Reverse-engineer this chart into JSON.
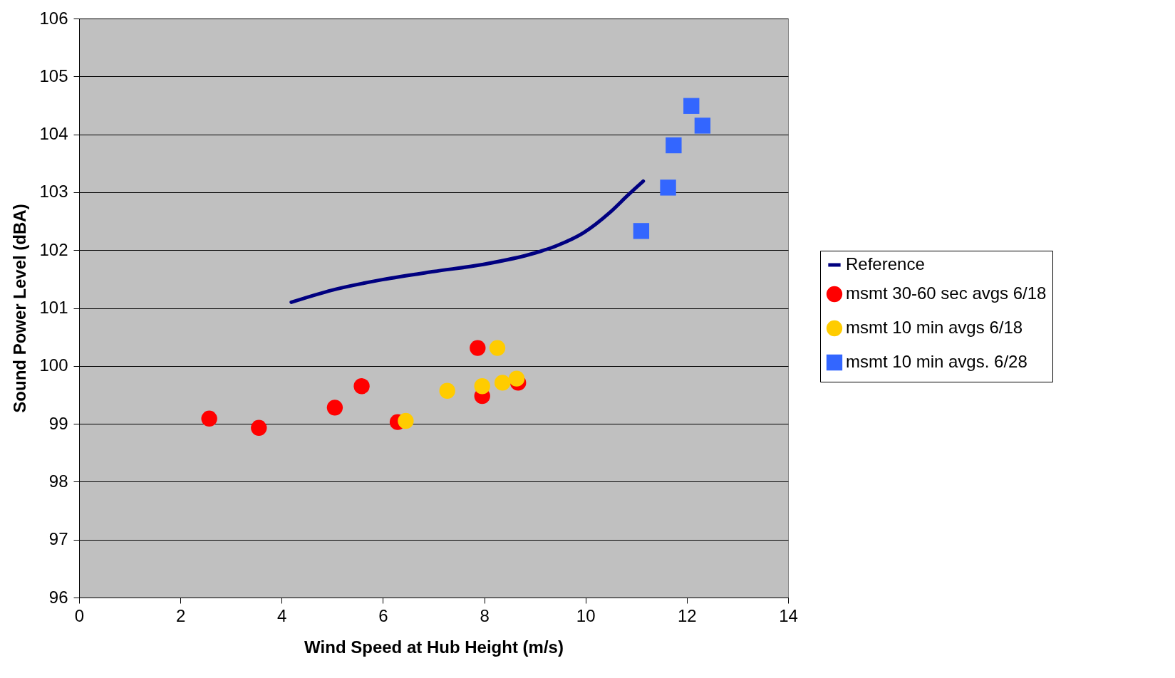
{
  "chart_data": {
    "type": "scatter",
    "xlabel": "Wind Speed at Hub Height (m/s)",
    "ylabel": "Sound Power Level (dBA)",
    "xlim": [
      0,
      14
    ],
    "xticks": [
      0,
      2,
      4,
      6,
      8,
      10,
      12,
      14
    ],
    "ylim": [
      96,
      106
    ],
    "yticks": [
      96,
      97,
      98,
      99,
      100,
      101,
      102,
      103,
      104,
      105,
      106
    ],
    "grid": "y",
    "legend": "right",
    "series": [
      {
        "name": "Reference",
        "type": "line",
        "color": "#000080",
        "line_style": "solid",
        "x": [
          4.19,
          5.0,
          5.99,
          7.0,
          7.96,
          9.0,
          9.44,
          9.96,
          10.48,
          10.85,
          11.14
        ],
        "values": [
          101.1,
          101.31,
          101.49,
          101.63,
          101.75,
          101.95,
          102.08,
          102.3,
          102.65,
          102.96,
          103.19
        ]
      },
      {
        "name": "msmt 30-60 sec avgs 6/18",
        "marker": "circle",
        "color": "#ff0000",
        "x": [
          2.57,
          3.55,
          5.05,
          5.58,
          6.29,
          7.87,
          7.96,
          8.67
        ],
        "values": [
          99.09,
          98.93,
          99.28,
          99.65,
          99.03,
          100.31,
          99.48,
          99.71
        ]
      },
      {
        "name": "msmt 10 min avgs 6/18",
        "marker": "circle",
        "color": "#ffcc00",
        "x": [
          6.45,
          7.27,
          8.26,
          7.96,
          8.36,
          8.64
        ],
        "values": [
          99.05,
          99.57,
          100.31,
          99.65,
          99.71,
          99.78
        ]
      },
      {
        "name": "msmt 10 min avgs. 6/28",
        "marker": "square",
        "color": "#3366ff",
        "x": [
          11.1,
          11.63,
          11.74,
          12.09,
          12.31
        ],
        "values": [
          102.33,
          103.08,
          103.81,
          104.49,
          104.15
        ]
      }
    ]
  }
}
